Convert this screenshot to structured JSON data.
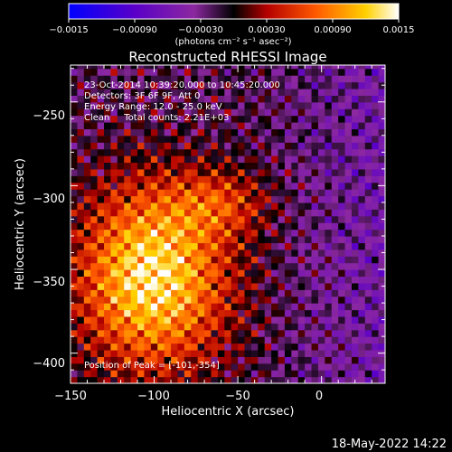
{
  "chart_data": {
    "type": "heatmap",
    "title": "Reconstructed RHESSI Image",
    "xlabel": "Heliocentric X (arcsec)",
    "ylabel": "Heliocentric Y (arcsec)",
    "xlim": [
      -150,
      38
    ],
    "ylim": [
      -418,
      -228
    ],
    "x_ticks": [
      -150,
      -100,
      -50,
      0
    ],
    "x_tick_labels": [
      "−150",
      "−100",
      "−50",
      "0"
    ],
    "y_ticks": [
      -250,
      -300,
      -350,
      -400
    ],
    "y_tick_labels": [
      "−250",
      "−300",
      "−350",
      "−400"
    ],
    "colorbar": {
      "range": [
        -0.0015,
        0.0015
      ],
      "ticks": [
        -0.0015,
        -0.0009,
        -0.0003,
        0.0003,
        0.0009,
        0.0015
      ],
      "tick_labels": [
        "−0.0015",
        "−0.00090",
        "−0.00030",
        "0.00030",
        "0.00090",
        "0.0015"
      ],
      "units": "(photons cm⁻² s⁻¹ asec⁻²)",
      "colormap": [
        "#0000ff",
        "#5a00c8",
        "#8c28a0",
        "#000000",
        "#b40000",
        "#ff5a00",
        "#ffd000",
        "#ffffff"
      ]
    },
    "annotations": {
      "line1": "23-Oct-2014 10:39:20.000 to 10:45:20.000",
      "line2": "Detectors: 3F 6F 9F, Att 0",
      "line3": "Energy Range: 12.0 - 25.0 keV",
      "line4": "Clean     Total counts: 2.21E+03",
      "peak": "Position of Peak = [-101,-354]"
    },
    "peak_position": [
      -101,
      -354
    ],
    "timestamp": "18-May-2022 14:22"
  }
}
